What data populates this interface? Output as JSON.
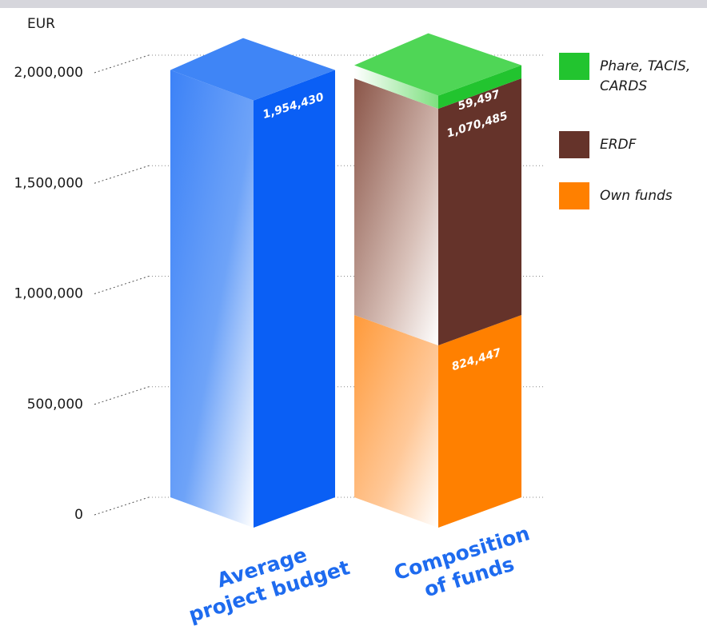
{
  "chart_data": {
    "type": "bar",
    "stacked": true,
    "ylabel": "EUR",
    "ylim": [
      0,
      2000000
    ],
    "y_ticks": [
      0,
      500000,
      1000000,
      1500000,
      2000000
    ],
    "y_tick_labels": [
      "0",
      "500,000",
      "1,000,000",
      "1,500,000",
      "2,000,000"
    ],
    "categories": [
      "Average project budget",
      "Composition of funds"
    ],
    "category_lines": [
      [
        "Average",
        "project budget"
      ],
      [
        "Composition",
        "of funds"
      ]
    ],
    "series": [
      {
        "name": "Average project budget",
        "values": [
          1954430,
          null
        ],
        "value_labels": [
          "1,954,430",
          ""
        ],
        "color": "#0a5ff5"
      },
      {
        "name": "Own funds",
        "values": [
          null,
          824447
        ],
        "value_labels": [
          "",
          "824,447"
        ],
        "color": "#ff8000"
      },
      {
        "name": "ERDF",
        "values": [
          null,
          1070485
        ],
        "value_labels": [
          "",
          "1,070,485"
        ],
        "color": "#65332a"
      },
      {
        "name": "Phare, TACIS, CARDS",
        "values": [
          null,
          59497
        ],
        "value_labels": [
          "",
          "59,497"
        ],
        "color": "#22c42f"
      }
    ],
    "legend": {
      "placement": "right",
      "items": [
        {
          "lines": [
            "Phare, TACIS,",
            "CARDS"
          ],
          "color": "#22c42f"
        },
        {
          "lines": [
            "ERDF"
          ],
          "color": "#65332a"
        },
        {
          "lines": [
            "Own funds"
          ],
          "color": "#ff8000"
        }
      ]
    },
    "grid": "dotted"
  }
}
